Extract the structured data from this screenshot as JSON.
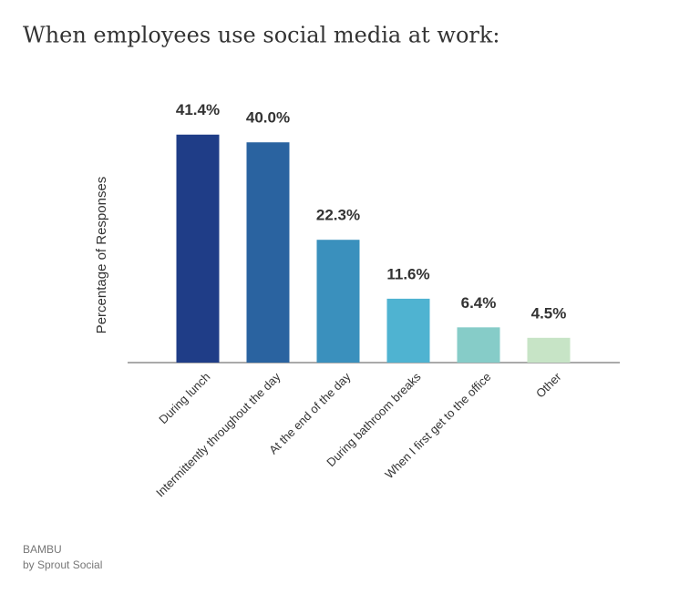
{
  "chart_data": {
    "type": "bar",
    "title": "When employees use social media at work:",
    "y_label": "Percentage of Responses",
    "categories": [
      "During lunch",
      "Intermittently throughout the day",
      "At the end of the day",
      "During bathroom breaks",
      "When I first get to the office",
      "Other"
    ],
    "values": [
      41.4,
      40,
      22.3,
      11.6,
      6.4,
      4.5
    ],
    "value_labels": [
      "41.4%",
      "40.0%",
      "22.3%",
      "11.6%",
      "6.4%",
      "4.5%"
    ],
    "colors": [
      "#1f3d87",
      "#2a63a0",
      "#3a90bd",
      "#4fb3d1",
      "#86ccc8",
      "#c7e4c6"
    ],
    "ylim": [
      0,
      45
    ],
    "source": [
      "BAMBU",
      "by Sprout Social"
    ]
  }
}
